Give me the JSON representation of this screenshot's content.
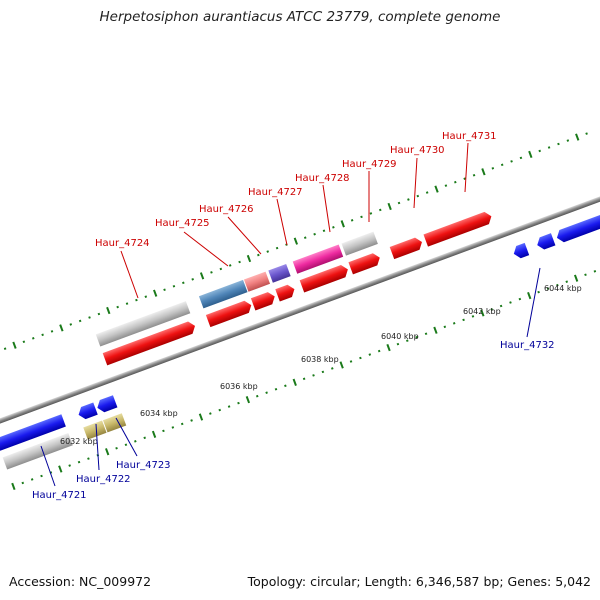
{
  "title": "Herpetosiphon aurantiacus ATCC 23779, complete genome",
  "footer": {
    "accession": "Accession: NC_009972",
    "summary": "Topology: circular; Length: 6,346,587 bp; Genes: 5,042"
  },
  "colors": {
    "forward_label": "#cc0000",
    "reverse_label": "#000099",
    "tick_dot": "#1a7a1a",
    "backbone": "#8a8a8a"
  },
  "scale_labels": [
    "6032 kbp",
    "6034 kbp",
    "6036 kbp",
    "6038 kbp",
    "6040 kbp",
    "6042 kbp",
    "6044 kbp"
  ],
  "gene_labels": {
    "forward": [
      "Haur_4724",
      "Haur_4725",
      "Haur_4726",
      "Haur_4727",
      "Haur_4728",
      "Haur_4729",
      "Haur_4730",
      "Haur_4731"
    ],
    "reverse": [
      "Haur_4721",
      "Haur_4722",
      "Haur_4723",
      "Haur_4732"
    ]
  }
}
